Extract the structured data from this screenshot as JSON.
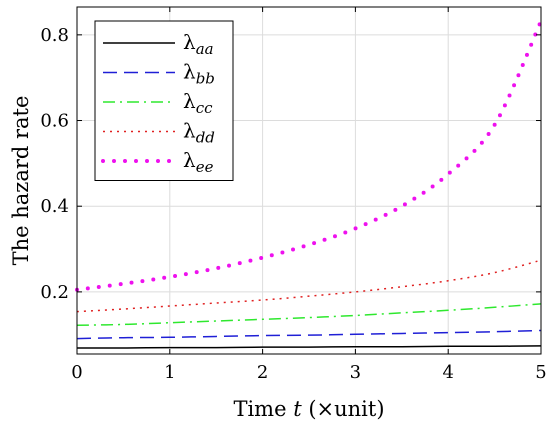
{
  "chart_data": {
    "type": "line",
    "xlabel_pre": "Time ",
    "xlabel_var": "t",
    "xlabel_post": " (×unit)",
    "ylabel": "The hazard rate",
    "xlim": [
      0,
      5
    ],
    "ylim": [
      0.055,
      0.865
    ],
    "xticks": [
      0,
      1,
      2,
      3,
      4,
      5
    ],
    "yticks": [
      0.2,
      0.4,
      0.6,
      0.8
    ],
    "grid": true,
    "legend_position": "top-left",
    "x": [
      0,
      0.5,
      1,
      1.5,
      2,
      2.5,
      3,
      3.5,
      4,
      4.5,
      5
    ],
    "series": [
      {
        "name": "λaa",
        "symbol": "λ",
        "subscript": "aa",
        "color": "#000000",
        "style": "solid",
        "values": [
          0.069,
          0.069,
          0.07,
          0.07,
          0.071,
          0.071,
          0.072,
          0.072,
          0.073,
          0.073,
          0.074
        ]
      },
      {
        "name": "λbb",
        "symbol": "λ",
        "subscript": "bb",
        "color": "#1f1fd6",
        "style": "dashed",
        "values": [
          0.091,
          0.093,
          0.094,
          0.096,
          0.098,
          0.099,
          0.101,
          0.103,
          0.105,
          0.107,
          0.11
        ]
      },
      {
        "name": "λcc",
        "symbol": "λ",
        "subscript": "cc",
        "color": "#2ee82e",
        "style": "dashdot",
        "values": [
          0.122,
          0.124,
          0.128,
          0.132,
          0.136,
          0.14,
          0.145,
          0.151,
          0.157,
          0.164,
          0.172
        ]
      },
      {
        "name": "λdd",
        "symbol": "λ",
        "subscript": "dd",
        "color": "#e02020",
        "style": "dotted",
        "values": [
          0.154,
          0.16,
          0.167,
          0.174,
          0.181,
          0.19,
          0.2,
          0.212,
          0.226,
          0.245,
          0.274
        ]
      },
      {
        "name": "λee",
        "symbol": "λ",
        "subscript": "ee",
        "color": "#ee11ee",
        "style": "bigdots",
        "values": [
          0.205,
          0.219,
          0.235,
          0.255,
          0.28,
          0.31,
          0.348,
          0.4,
          0.475,
          0.59,
          0.832
        ]
      }
    ]
  }
}
